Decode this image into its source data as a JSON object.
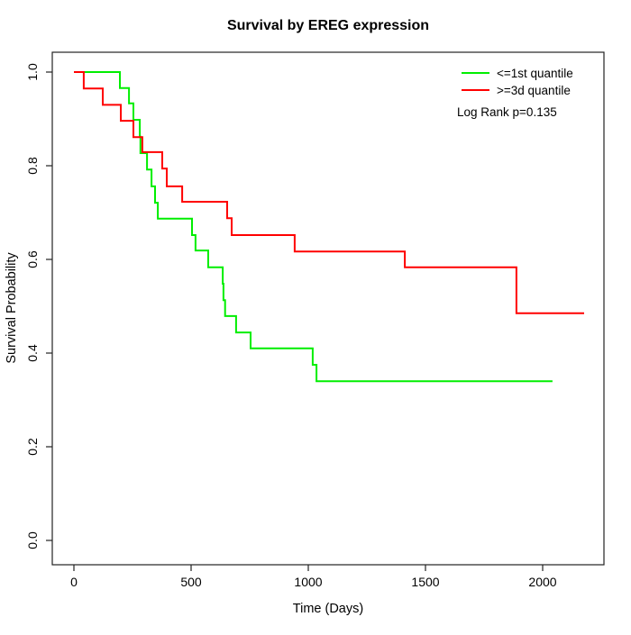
{
  "chart_data": {
    "type": "line",
    "subtype": "kaplan-meier-step",
    "title": "Survival by EREG expression",
    "xlabel": "Time (Days)",
    "ylabel": "Survival Probability",
    "x_ticks": [
      0,
      500,
      1000,
      1500,
      2000
    ],
    "y_ticks": [
      0.0,
      0.2,
      0.4,
      0.6,
      0.8,
      1.0
    ],
    "xlim": [
      0,
      2200
    ],
    "ylim": [
      0.0,
      1.0
    ],
    "grid": false,
    "legend_position": "top-right",
    "annotation": "Log Rank p=0.135",
    "series": [
      {
        "name": "<=1st quantile",
        "color": "#00EE00",
        "end_time": 2042,
        "steps": [
          [
            0,
            1.0
          ],
          [
            196,
            0.966
          ],
          [
            235,
            0.933
          ],
          [
            254,
            0.898
          ],
          [
            281,
            0.862
          ],
          [
            284,
            0.827
          ],
          [
            312,
            0.792
          ],
          [
            331,
            0.756
          ],
          [
            346,
            0.721
          ],
          [
            358,
            0.687
          ],
          [
            504,
            0.652
          ],
          [
            519,
            0.619
          ],
          [
            573,
            0.583
          ],
          [
            635,
            0.548
          ],
          [
            638,
            0.513
          ],
          [
            645,
            0.479
          ],
          [
            692,
            0.444
          ],
          [
            754,
            0.41
          ],
          [
            1019,
            0.375
          ],
          [
            1035,
            0.34
          ]
        ]
      },
      {
        "name": ">=3d quantile",
        "color": "#FF0000",
        "end_time": 2177,
        "steps": [
          [
            0,
            1.0
          ],
          [
            42,
            0.965
          ],
          [
            123,
            0.93
          ],
          [
            200,
            0.896
          ],
          [
            254,
            0.861
          ],
          [
            292,
            0.829
          ],
          [
            377,
            0.794
          ],
          [
            396,
            0.756
          ],
          [
            462,
            0.723
          ],
          [
            654,
            0.688
          ],
          [
            673,
            0.652
          ],
          [
            942,
            0.617
          ],
          [
            1412,
            0.583
          ],
          [
            1888,
            0.485
          ]
        ]
      }
    ]
  }
}
